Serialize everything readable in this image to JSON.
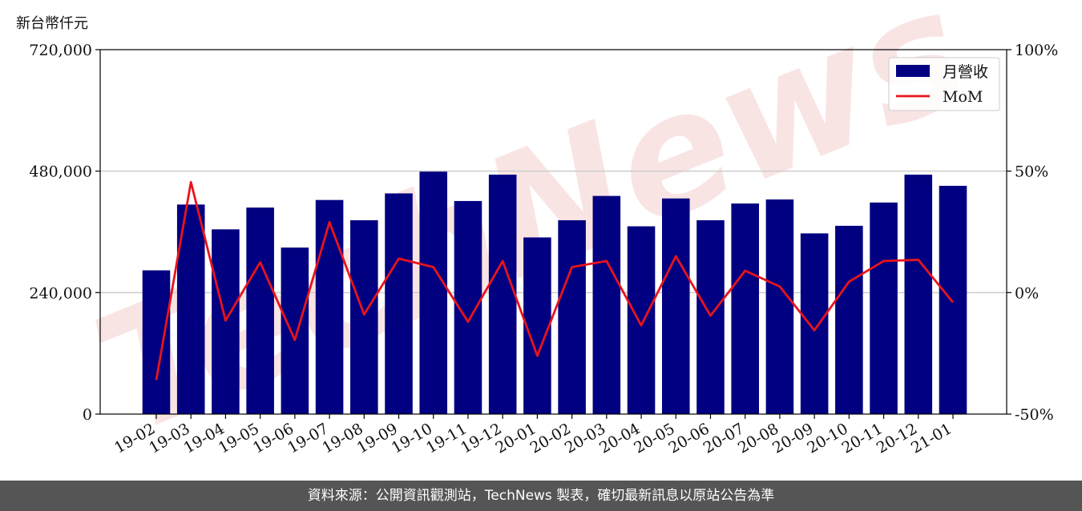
{
  "unit_label": "新台幣仟元",
  "footer_text": "資料來源：公開資訊觀測站，TechNews 製表，確切最新訊息以原站公告為準",
  "watermark_text": "TechNews",
  "colors": {
    "bar": "#000080",
    "line": "#e8141b",
    "grid": "#cccccc",
    "watermark": "#f2c4c4",
    "footer_bg": "#555555"
  },
  "chart_data": {
    "type": "bar",
    "categories": [
      "19-02",
      "19-03",
      "19-04",
      "19-05",
      "19-06",
      "19-07",
      "19-08",
      "19-09",
      "19-10",
      "19-11",
      "19-12",
      "20-01",
      "20-02",
      "20-03",
      "20-04",
      "20-05",
      "20-06",
      "20-07",
      "20-08",
      "20-09",
      "20-10",
      "20-11",
      "20-12",
      "21-01"
    ],
    "series": [
      {
        "name": "月營收",
        "type": "bar",
        "axis": "left",
        "values": [
          284000,
          414000,
          365000,
          408000,
          329000,
          423000,
          383000,
          436000,
          479000,
          421000,
          473000,
          349000,
          383000,
          431000,
          371000,
          426000,
          383000,
          416000,
          424000,
          357000,
          372000,
          418000,
          473000,
          451000
        ]
      },
      {
        "name": "MoM",
        "type": "line",
        "axis": "right",
        "values": [
          -36.0,
          45.5,
          -11.5,
          12.5,
          -19.5,
          29.0,
          -9.0,
          14.0,
          10.5,
          -12.0,
          13.0,
          -26.0,
          10.5,
          13.0,
          -13.5,
          15.0,
          -9.5,
          9.0,
          2.5,
          -15.5,
          4.5,
          13.0,
          13.5,
          -4.0
        ]
      }
    ],
    "left_axis": {
      "ylim": [
        0,
        720000
      ],
      "ticks": [
        "0",
        "240,000",
        "480,000",
        "720,000"
      ],
      "tick_values": [
        0,
        240000,
        480000,
        720000
      ]
    },
    "right_axis": {
      "ylim": [
        -50,
        100
      ],
      "ticks": [
        "-50%",
        "0%",
        "50%",
        "100%"
      ],
      "tick_values": [
        -50,
        0,
        50,
        100
      ]
    },
    "grid": "horizontal",
    "legend": {
      "placement": "top-right",
      "entries": [
        "月營收",
        "MoM"
      ]
    }
  }
}
